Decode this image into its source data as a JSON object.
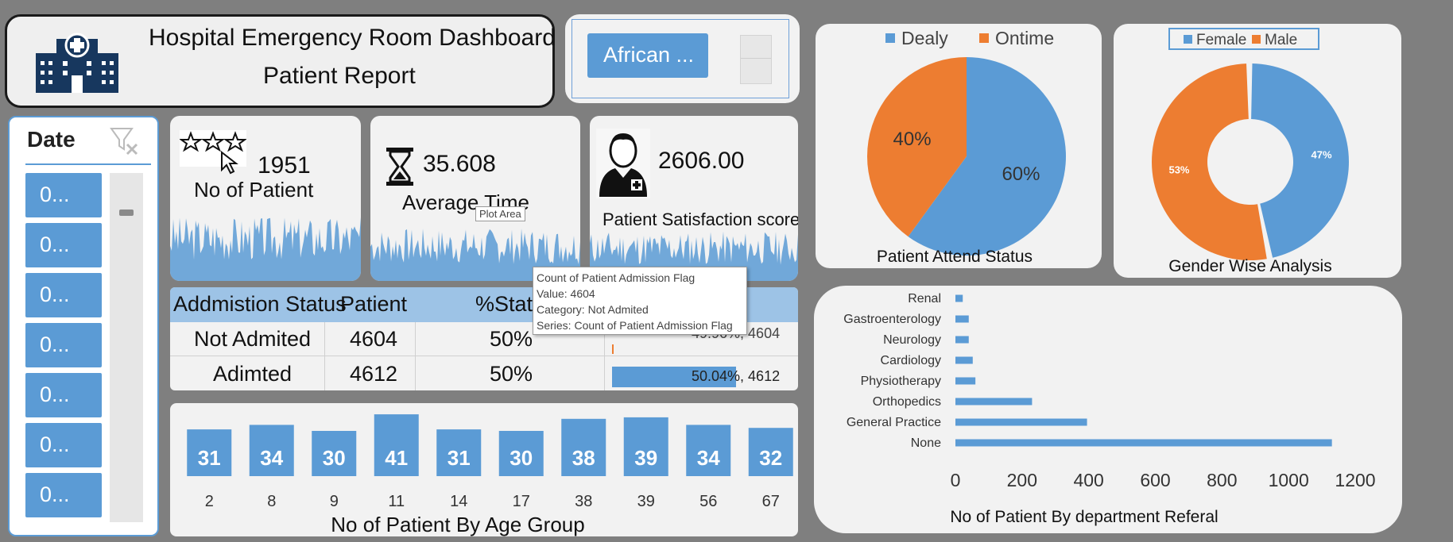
{
  "header": {
    "title": "Hospital Emergency Room Dashboard",
    "subtitle": "Patient Report"
  },
  "race_slicer": {
    "selected": "African ..."
  },
  "date_slicer": {
    "header": "Date",
    "items": [
      "0...",
      "0...",
      "0...",
      "0...",
      "0...",
      "0...",
      "0..."
    ]
  },
  "kpis": {
    "patients": {
      "value": "1951",
      "label": "No of Patient"
    },
    "avg_time": {
      "value": "35.608",
      "label": "Average Time"
    },
    "satisfaction": {
      "value": "2606.00",
      "label": "Patient Satisfaction score"
    }
  },
  "plot_area_tooltip": "Plot Area",
  "admission_table": {
    "headers": [
      "Addmistion Status",
      "Patient",
      "%Status"
    ],
    "rows": [
      {
        "status": "Not Admited",
        "patient": "4604",
        "pct": "50%",
        "bar_label": "49.96%, 4604",
        "share": 0.4996
      },
      {
        "status": "Adimted",
        "patient": "4612",
        "pct": "50%",
        "bar_label": "50.04%, 4612",
        "share": 0.5004
      }
    ]
  },
  "tooltip": {
    "line1": "Count of Patient Admission Flag",
    "line2": "Value: 4604",
    "line3": "Category: Not Admited",
    "line4": "Series: Count of Patient Admission Flag"
  },
  "colors": {
    "blue": "#5b9bd5",
    "orange": "#ed7d31",
    "panel": "#f2f2f2",
    "background": "#7f7f7f"
  },
  "icons": [
    "hospital-icon",
    "star-rating-icon",
    "cursor-icon",
    "hourglass-icon",
    "doctor-icon",
    "clear-filter-icon"
  ],
  "chart_data": [
    {
      "type": "bar",
      "title": "No of Patient By Age Group",
      "categories": [
        "2",
        "8",
        "9",
        "11",
        "14",
        "17",
        "38",
        "39",
        "56",
        "67"
      ],
      "values": [
        31,
        34,
        30,
        41,
        31,
        30,
        38,
        39,
        34,
        32
      ]
    },
    {
      "type": "pie",
      "title": "Patient Attend Status",
      "labels": [
        "Dealy",
        "Ontime"
      ],
      "values": [
        60,
        40
      ],
      "data_labels": [
        "60%",
        "40%"
      ],
      "legend": "top"
    },
    {
      "type": "pie",
      "title": "Gender Wise Analysis",
      "labels": [
        "Female",
        "Male"
      ],
      "values": [
        47,
        53
      ],
      "data_labels": [
        "47%",
        "53%"
      ],
      "legend": "top"
    },
    {
      "type": "bar",
      "orientation": "horizontal",
      "title": "No of Patient By department Referal",
      "categories": [
        "Renal",
        "Gastroenterology",
        "Neurology",
        "Cardiology",
        "Physiotherapy",
        "Orthopedics",
        "General Practice",
        "None"
      ],
      "values": [
        22,
        40,
        40,
        52,
        60,
        230,
        395,
        1130
      ],
      "xlim": [
        0,
        1200
      ],
      "xticks": [
        "0",
        "200",
        "400",
        "600",
        "800",
        "1000",
        "1200"
      ]
    }
  ]
}
